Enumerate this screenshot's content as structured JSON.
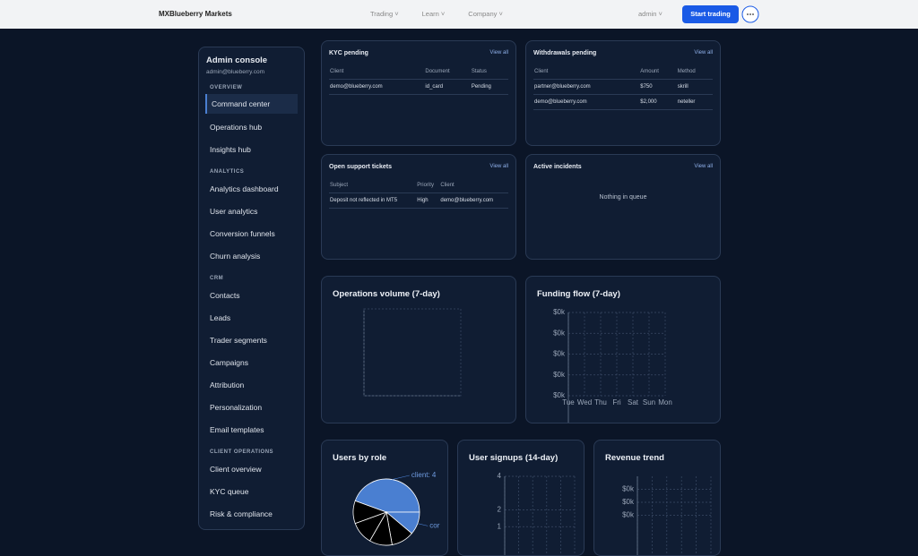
{
  "header": {
    "brand": "MXBlueberry Markets",
    "nav": [
      "Trading",
      "Learn",
      "Company"
    ],
    "user": "admin",
    "cta": "Start trading"
  },
  "sidebar": {
    "title": "Admin console",
    "email": "admin@blueberry.com",
    "active": "Command center",
    "sections": [
      {
        "heading": "OVERVIEW",
        "items": [
          "Command center",
          "Operations hub",
          "Insights hub"
        ]
      },
      {
        "heading": "ANALYTICS",
        "items": [
          "Analytics dashboard",
          "User analytics",
          "Conversion funnels",
          "Churn analysis"
        ]
      },
      {
        "heading": "CRM",
        "items": [
          "Contacts",
          "Leads",
          "Trader segments",
          "Campaigns",
          "Attribution",
          "Personalization",
          "Email templates"
        ]
      },
      {
        "heading": "CLIENT OPERATIONS",
        "items": [
          "Client overview",
          "KYC queue",
          "Risk & compliance"
        ]
      }
    ]
  },
  "panels": [
    {
      "title": "KYC pending",
      "action": "View all",
      "columns": [
        "Client",
        "Document",
        "Status"
      ],
      "rows": [
        [
          "demo@blueberry.com",
          "id_card",
          "Pending"
        ]
      ]
    },
    {
      "title": "Withdrawals pending",
      "action": "View all",
      "columns": [
        "Client",
        "Amount",
        "Method"
      ],
      "rows": [
        [
          "partner@blueberry.com",
          "$750",
          "skrill"
        ],
        [
          "demo@blueberry.com",
          "$2,000",
          "neteller"
        ]
      ]
    },
    {
      "title": "Open support tickets",
      "action": "View all",
      "columns": [
        "Subject",
        "Priority",
        "Client"
      ],
      "rows": [
        [
          "Deposit not reflected in MT5",
          "High",
          "demo@blueberry.com"
        ]
      ]
    },
    {
      "title": "Active incidents",
      "action": "View all",
      "empty": "Nothing in queue"
    }
  ],
  "charts": [
    {
      "type": "empty",
      "title": "Operations volume (7-day)"
    },
    {
      "type": "line",
      "title": "Funding flow (7-day)",
      "categories": [
        "Tue",
        "Wed",
        "Thu",
        "Fri",
        "Sat",
        "Sun",
        "Mon"
      ],
      "ylim": [
        0,
        400
      ],
      "yticks": [
        {
          "value": 400,
          "label": "$0k"
        },
        {
          "value": 300,
          "label": "$0k"
        },
        {
          "value": 200,
          "label": "$0k"
        },
        {
          "value": 100,
          "label": "$0k"
        },
        {
          "value": 0,
          "label": "$0k"
        }
      ],
      "grid": true
    },
    {
      "type": "pie",
      "title": "Users by role",
      "categories": [
        "client: 4",
        "cor",
        null,
        null,
        null,
        null
      ],
      "values": [
        4,
        1,
        1,
        1,
        1,
        1
      ],
      "colors": [
        "#4a7fd1",
        "#4a7fd1",
        "#000000",
        "#000000",
        "#000000",
        "#000000"
      ]
    },
    {
      "type": "line",
      "title": "User signups (14-day)",
      "ylim": [
        0,
        4
      ],
      "yticks": [
        4,
        2,
        1
      ],
      "grid": true
    },
    {
      "type": "line",
      "title": "Revenue trend",
      "ylim": [
        0,
        400
      ],
      "yticks": [
        {
          "value": 300,
          "label": "$0k"
        },
        {
          "value": 200,
          "label": "$0k"
        },
        {
          "value": 100,
          "label": "$0k"
        }
      ],
      "grid": true
    }
  ]
}
